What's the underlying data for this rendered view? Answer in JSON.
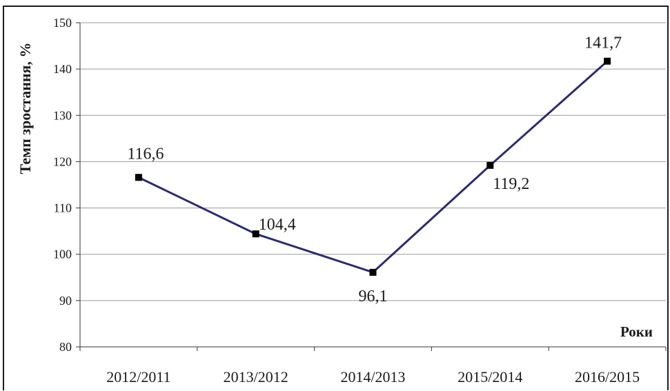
{
  "chart_data": {
    "type": "line",
    "categories": [
      "2012/2011",
      "2013/2012",
      "2014/2013",
      "2015/2014",
      "2016/2015"
    ],
    "values": [
      116.6,
      104.4,
      96.1,
      119.2,
      141.7
    ],
    "data_labels": [
      "116,6",
      "104,4",
      "96,1",
      "119,2",
      "141,7"
    ],
    "ylabel": "Темп зростання, %",
    "xlabel": "Роки",
    "ylim": [
      80,
      150
    ],
    "yticks": [
      80,
      90,
      100,
      110,
      120,
      130,
      140,
      150
    ],
    "grid": true,
    "line_color": "#2b2b6e",
    "marker_color": "#000000"
  }
}
